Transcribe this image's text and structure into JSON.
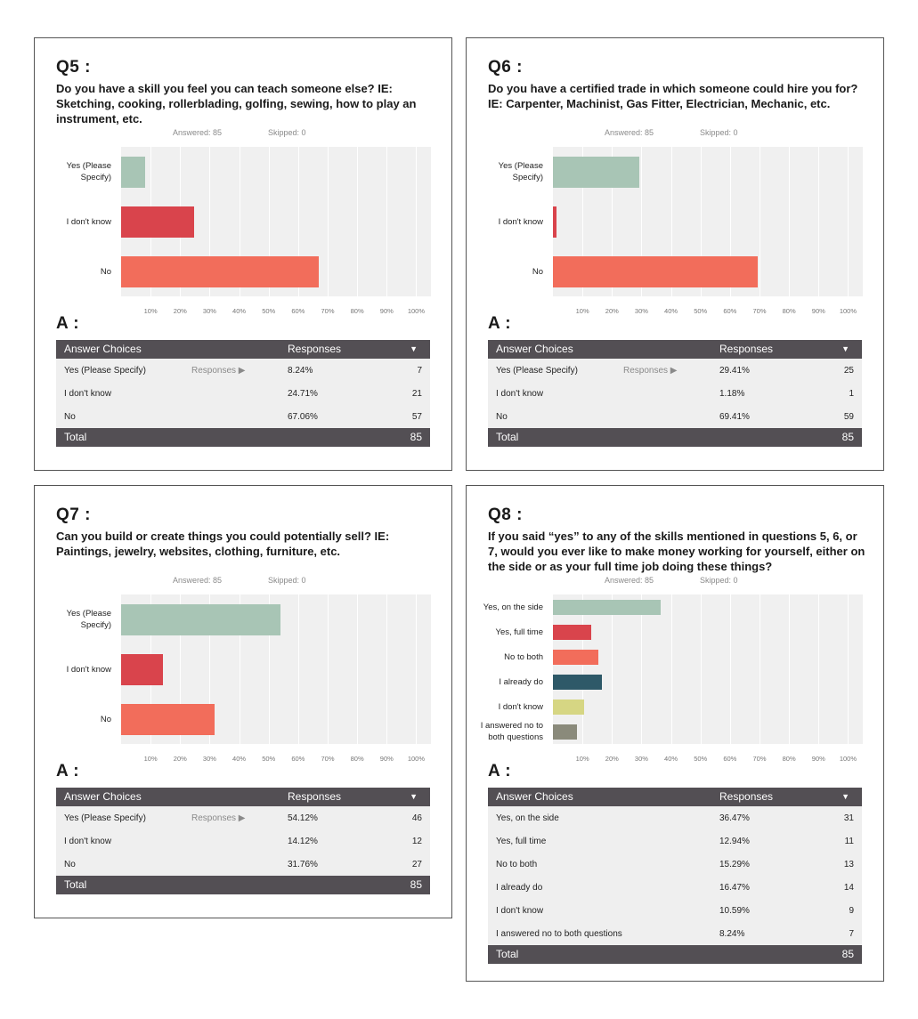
{
  "colors": {
    "green": "#a8c5b5",
    "red": "#d9444c",
    "salmon": "#f26d5b",
    "teal": "#2e5968",
    "yellow": "#d6d683",
    "gray": "#8a8a7b",
    "table_header": "#534f54",
    "plot_bg": "#f0f0f0"
  },
  "table_labels": {
    "answer_choices": "Answer Choices",
    "responses": "Responses",
    "total": "Total",
    "responses_link": "Responses ▶",
    "sort_icon": "▼"
  },
  "x_ticks": [
    "10%",
    "20%",
    "30%",
    "40%",
    "50%",
    "60%",
    "70%",
    "80%",
    "90%",
    "100%"
  ],
  "cards": [
    {
      "id": "q5",
      "qnum": "Q5 :",
      "question": "Do you have a skill you feel you can teach someone else? IE: Sketching, cooking, rollerblading, golfing, sewing, how to play an instrument, etc.",
      "answered": "Answered: 85",
      "skipped": "Skipped: 0",
      "answer_label": "A :",
      "total": "85",
      "rows": [
        {
          "choice": "Yes (Please Specify)",
          "label_lines": [
            "Yes (Please",
            "Specify)"
          ],
          "pct": "8.24%",
          "count": "7",
          "link": true
        },
        {
          "choice": "I don't know",
          "label_lines": [
            "I don't know"
          ],
          "pct": "24.71%",
          "count": "21",
          "link": false
        },
        {
          "choice": "No",
          "label_lines": [
            "No"
          ],
          "pct": "67.06%",
          "count": "57",
          "link": false
        }
      ]
    },
    {
      "id": "q6",
      "qnum": "Q6 :",
      "question": "Do you have a certified trade in which someone could hire you for? IE: Carpenter, Machinist, Gas Fitter, Electrician, Mechanic, etc.",
      "answered": "Answered: 85",
      "skipped": "Skipped: 0",
      "answer_label": "A :",
      "total": "85",
      "rows": [
        {
          "choice": "Yes (Please Specify)",
          "label_lines": [
            "Yes (Please",
            "Specify)"
          ],
          "pct": "29.41%",
          "count": "25",
          "link": true
        },
        {
          "choice": "I don't know",
          "label_lines": [
            "I don't know"
          ],
          "pct": "1.18%",
          "count": "1",
          "link": false
        },
        {
          "choice": "No",
          "label_lines": [
            "No"
          ],
          "pct": "69.41%",
          "count": "59",
          "link": false
        }
      ]
    },
    {
      "id": "q7",
      "qnum": "Q7 :",
      "question": "Can you build or create things you could potentially sell? IE: Paintings, jewelry, websites, clothing, furniture, etc.",
      "answered": "Answered: 85",
      "skipped": "Skipped: 0",
      "answer_label": "A :",
      "total": "85",
      "rows": [
        {
          "choice": "Yes (Please Specify)",
          "label_lines": [
            "Yes (Please",
            "Specify)"
          ],
          "pct": "54.12%",
          "count": "46",
          "link": true
        },
        {
          "choice": "I don't know",
          "label_lines": [
            "I don't know"
          ],
          "pct": "14.12%",
          "count": "12",
          "link": false
        },
        {
          "choice": "No",
          "label_lines": [
            "No"
          ],
          "pct": "31.76%",
          "count": "27",
          "link": false
        }
      ]
    },
    {
      "id": "q8",
      "qnum": "Q8 :",
      "question": "If you said “yes” to any of the skills mentioned in questions 5, 6, or 7, would you ever like to make money working for yourself, either on the side or as your full time job doing these things?",
      "answered": "Answered: 85",
      "skipped": "Skipped: 0",
      "answer_label": "A :",
      "total": "85",
      "rows": [
        {
          "choice": "Yes, on the side",
          "label_lines": [
            "Yes, on the side"
          ],
          "pct": "36.47%",
          "count": "31",
          "link": false
        },
        {
          "choice": "Yes, full time",
          "label_lines": [
            "Yes, full time"
          ],
          "pct": "12.94%",
          "count": "11",
          "link": false
        },
        {
          "choice": "No to both",
          "label_lines": [
            "No to both"
          ],
          "pct": "15.29%",
          "count": "13",
          "link": false
        },
        {
          "choice": "I already do",
          "label_lines": [
            "I already do"
          ],
          "pct": "16.47%",
          "count": "14",
          "link": false
        },
        {
          "choice": "I don't know",
          "label_lines": [
            "I don't know"
          ],
          "pct": "10.59%",
          "count": "9",
          "link": false
        },
        {
          "choice": "I answered no to both questions",
          "label_lines": [
            "I answered no to",
            "both questions"
          ],
          "pct": "8.24%",
          "count": "7",
          "link": false
        }
      ]
    }
  ],
  "chart_data": [
    {
      "type": "bar",
      "orientation": "horizontal",
      "categories": [
        "Yes (Please Specify)",
        "I don't know",
        "No"
      ],
      "values": [
        8.24,
        24.71,
        67.06
      ],
      "colors": [
        "#a8c5b5",
        "#d9444c",
        "#f26d5b"
      ],
      "xlim": [
        0,
        100
      ],
      "grid": true
    },
    {
      "type": "bar",
      "orientation": "horizontal",
      "categories": [
        "Yes (Please Specify)",
        "I don't know",
        "No"
      ],
      "values": [
        29.41,
        1.18,
        69.41
      ],
      "colors": [
        "#a8c5b5",
        "#d9444c",
        "#f26d5b"
      ],
      "xlim": [
        0,
        100
      ],
      "grid": true
    },
    {
      "type": "bar",
      "orientation": "horizontal",
      "categories": [
        "Yes (Please Specify)",
        "I don't know",
        "No"
      ],
      "values": [
        54.12,
        14.12,
        31.76
      ],
      "colors": [
        "#a8c5b5",
        "#d9444c",
        "#f26d5b"
      ],
      "xlim": [
        0,
        100
      ],
      "grid": true
    },
    {
      "type": "bar",
      "orientation": "horizontal",
      "categories": [
        "Yes, on the side",
        "Yes, full time",
        "No to both",
        "I already do",
        "I don't know",
        "I answered no to both questions"
      ],
      "values": [
        36.47,
        12.94,
        15.29,
        16.47,
        10.59,
        8.24
      ],
      "colors": [
        "#a8c5b5",
        "#d9444c",
        "#f26d5b",
        "#2e5968",
        "#d6d683",
        "#8a8a7b"
      ],
      "xlim": [
        0,
        100
      ],
      "grid": true
    }
  ]
}
